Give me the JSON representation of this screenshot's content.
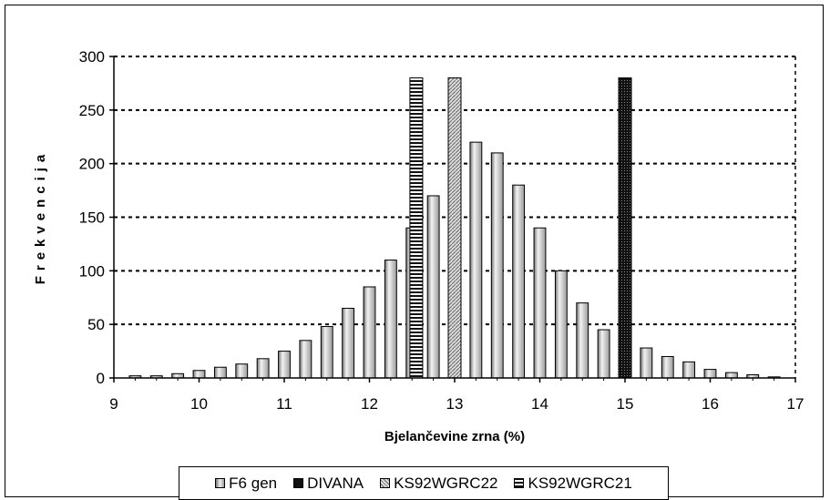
{
  "chart_data": {
    "type": "bar",
    "xlabel": "Bjelančevine zrna (%)",
    "ylabel": "Frekvencija",
    "xlim": [
      9,
      17
    ],
    "ylim": [
      0,
      300
    ],
    "x_ticks": [
      9,
      10,
      11,
      12,
      13,
      14,
      15,
      16,
      17
    ],
    "y_ticks": [
      0,
      50,
      100,
      150,
      200,
      250,
      300
    ],
    "grid": "horizontal dashed",
    "legend_position": "bottom",
    "series": [
      {
        "name": "F6 gen",
        "x": [
          9.25,
          9.5,
          9.75,
          10.0,
          10.25,
          10.5,
          10.75,
          11.0,
          11.25,
          11.5,
          11.75,
          12.0,
          12.25,
          12.5,
          12.75,
          13.0,
          13.25,
          13.5,
          13.75,
          14.0,
          14.25,
          14.5,
          14.75,
          15.0,
          15.25,
          15.5,
          15.75,
          16.0,
          16.25,
          16.5,
          16.75
        ],
        "values": [
          2,
          2,
          4,
          7,
          10,
          13,
          18,
          25,
          35,
          48,
          65,
          85,
          110,
          140,
          170,
          215,
          220,
          210,
          180,
          140,
          100,
          70,
          45,
          30,
          28,
          20,
          15,
          8,
          5,
          3,
          1
        ],
        "color": "#cccccc"
      },
      {
        "name": "DIVANA",
        "x": [
          15.0
        ],
        "values": [
          280
        ],
        "color": "#111111"
      },
      {
        "name": "KS92WGRC22",
        "x": [
          13.0
        ],
        "values": [
          280
        ],
        "color": "#bbbbbb"
      },
      {
        "name": "KS92WGRC21",
        "x": [
          12.55
        ],
        "values": [
          280
        ],
        "color": "#222222"
      }
    ]
  },
  "legend": [
    {
      "label": "F6 gen",
      "color": "#cccccc"
    },
    {
      "label": "DIVANA",
      "color": "#111111"
    },
    {
      "label": "KS92WGRC22",
      "color": "#bbbbbb"
    },
    {
      "label": "KS92WGRC21",
      "color": "#222222"
    }
  ]
}
